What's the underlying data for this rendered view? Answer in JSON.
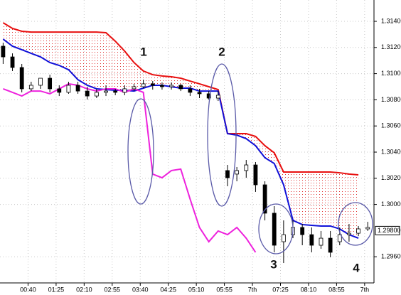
{
  "chart_data": {
    "type": "candlestick",
    "xlim": [
      0,
      120
    ],
    "ylim": [
      1.294,
      1.31563
    ],
    "grid": true,
    "xticks": [
      {
        "value": 9,
        "label": "00:40"
      },
      {
        "value": 18,
        "label": "01:25"
      },
      {
        "value": 27,
        "label": "02:10"
      },
      {
        "value": 36,
        "label": "02:55"
      },
      {
        "value": 45,
        "label": "03:40"
      },
      {
        "value": 54,
        "label": "04:25"
      },
      {
        "value": 63,
        "label": "05:10"
      },
      {
        "value": 72,
        "label": "05:55"
      },
      {
        "value": 81,
        "label": "7th"
      },
      {
        "value": 90,
        "label": "07:25"
      },
      {
        "value": 99,
        "label": "08:10"
      },
      {
        "value": 108,
        "label": "08:55"
      },
      {
        "value": 117,
        "label": "7th"
      }
    ],
    "yticks": [
      {
        "value": 1.314,
        "label": "1.31400"
      },
      {
        "value": 1.312,
        "label": "1.31200"
      },
      {
        "value": 1.31,
        "label": "1.31000"
      },
      {
        "value": 1.308,
        "label": "1.30800"
      },
      {
        "value": 1.306,
        "label": "1.30600"
      },
      {
        "value": 1.304,
        "label": "1.30400"
      },
      {
        "value": 1.302,
        "label": "1.30200"
      },
      {
        "value": 1.3,
        "label": "1.30000"
      },
      {
        "value": 1.296,
        "label": "1.29600"
      }
    ],
    "price_marker": {
      "value": 1.298,
      "label": "1.29800"
    },
    "x": [
      1,
      4,
      7,
      10,
      13,
      16,
      19,
      22,
      25,
      28,
      31,
      34,
      37,
      40,
      43,
      46,
      49,
      52,
      55,
      58,
      61,
      64,
      67,
      70,
      73,
      76,
      79,
      82,
      85,
      88,
      91,
      94,
      97,
      100,
      103,
      106,
      109,
      112,
      115,
      118
    ],
    "open": [
      1.3121,
      1.31128,
      1.31047,
      1.30884,
      1.30911,
      1.30965,
      1.30884,
      1.30857,
      1.30911,
      1.30867,
      1.30829,
      1.30857,
      1.30867,
      1.30857,
      1.30884,
      1.309,
      1.30922,
      1.30911,
      1.309,
      1.30911,
      1.30884,
      1.30857,
      1.30846,
      1.30813,
      1.30259,
      1.30232,
      1.30259,
      1.30302,
      1.3015,
      1.29933,
      1.29715,
      1.29769,
      1.29824,
      1.29769,
      1.29688,
      1.29742,
      1.29715,
      1.29769,
      1.2978,
      1.29813
    ],
    "high": [
      1.31237,
      1.31155,
      1.31074,
      1.30938,
      1.30965,
      1.30992,
      1.30911,
      1.30938,
      1.30938,
      1.309,
      1.30884,
      1.30911,
      1.30884,
      1.30911,
      1.30922,
      1.30954,
      1.30943,
      1.30933,
      1.30933,
      1.30922,
      1.30911,
      1.30884,
      1.30867,
      1.30867,
      1.30302,
      1.30286,
      1.3034,
      1.30324,
      1.30177,
      1.29987,
      1.29878,
      1.29878,
      1.29851,
      1.29824,
      1.29797,
      1.29797,
      1.29824,
      1.29851,
      1.29835,
      1.29867
    ],
    "low": [
      1.31074,
      1.3102,
      1.30857,
      1.30867,
      1.30884,
      1.30857,
      1.30829,
      1.30846,
      1.30846,
      1.30802,
      1.30813,
      1.30829,
      1.30835,
      1.30835,
      1.30867,
      1.30889,
      1.30878,
      1.30878,
      1.30878,
      1.30867,
      1.30829,
      1.30813,
      1.30802,
      1.30791,
      1.30139,
      1.30177,
      1.30204,
      1.30096,
      1.29878,
      1.29634,
      1.29552,
      1.29742,
      1.29688,
      1.29634,
      1.29661,
      1.29596,
      1.29688,
      1.29715,
      1.29758,
      1.29797
    ],
    "close": [
      1.31128,
      1.31047,
      1.30884,
      1.30911,
      1.30965,
      1.30884,
      1.30857,
      1.30911,
      1.30867,
      1.30829,
      1.30857,
      1.30867,
      1.30857,
      1.30884,
      1.309,
      1.30922,
      1.30911,
      1.309,
      1.30911,
      1.30884,
      1.30857,
      1.30846,
      1.30813,
      1.30835,
      1.30204,
      1.30259,
      1.30302,
      1.3015,
      1.29933,
      1.29688,
      1.29769,
      1.29824,
      1.29769,
      1.29688,
      1.29742,
      1.29634,
      1.29769,
      1.2978,
      1.29813,
      1.29824
    ],
    "bull_color": "#ffffff",
    "bear_color": "#000000",
    "series": [
      {
        "color": "#e81010",
        "values": [
          1.31389,
          1.31346,
          1.31324,
          1.31318,
          1.31318,
          1.31318,
          1.31318,
          1.31318,
          1.31318,
          1.31318,
          1.31318,
          1.31313,
          1.31248,
          1.31172,
          1.31085,
          1.3102,
          1.30992,
          1.30982,
          1.30976,
          1.30965,
          1.30943,
          1.30922,
          1.309,
          1.30878,
          1.30541,
          1.30541,
          1.30541,
          1.3052,
          1.30449,
          1.30395,
          1.30248,
          1.30248,
          1.30248,
          1.30248,
          1.30248,
          1.30248,
          1.30242,
          1.30232,
          1.30226,
          null
        ]
      },
      {
        "color": "#1010d8",
        "values": [
          1.31264,
          1.3121,
          1.31183,
          1.31155,
          1.31128,
          1.31085,
          1.31063,
          1.3103,
          1.30954,
          1.30911,
          1.30884,
          1.30878,
          1.30873,
          1.30873,
          1.30867,
          1.30889,
          1.30911,
          1.30911,
          1.309,
          1.30889,
          1.30889,
          1.30867,
          1.30867,
          1.30867,
          1.30541,
          1.3053,
          1.30503,
          1.30449,
          1.30357,
          1.30313,
          1.3015,
          1.29878,
          1.29846,
          1.2984,
          1.29835,
          1.29835,
          1.29813,
          1.29769,
          1.29742,
          null
        ]
      },
      {
        "color": "#ee22dd",
        "values": [
          1.30884,
          1.30857,
          1.30829,
          1.30867,
          1.30867,
          1.30846,
          1.30884,
          1.30922,
          1.30911,
          1.30884,
          1.30867,
          1.30884,
          1.30884,
          1.30857,
          1.30884,
          1.30857,
          1.30232,
          1.30204,
          1.30259,
          1.3027,
          1.30041,
          1.29824,
          1.29715,
          1.29797,
          1.29769,
          1.29824,
          1.29742,
          1.29634,
          null,
          null,
          null,
          null,
          null,
          null,
          null,
          null,
          null,
          null,
          null,
          null
        ]
      }
    ],
    "annotations": [
      "1",
      "2",
      "3",
      "4"
    ]
  }
}
